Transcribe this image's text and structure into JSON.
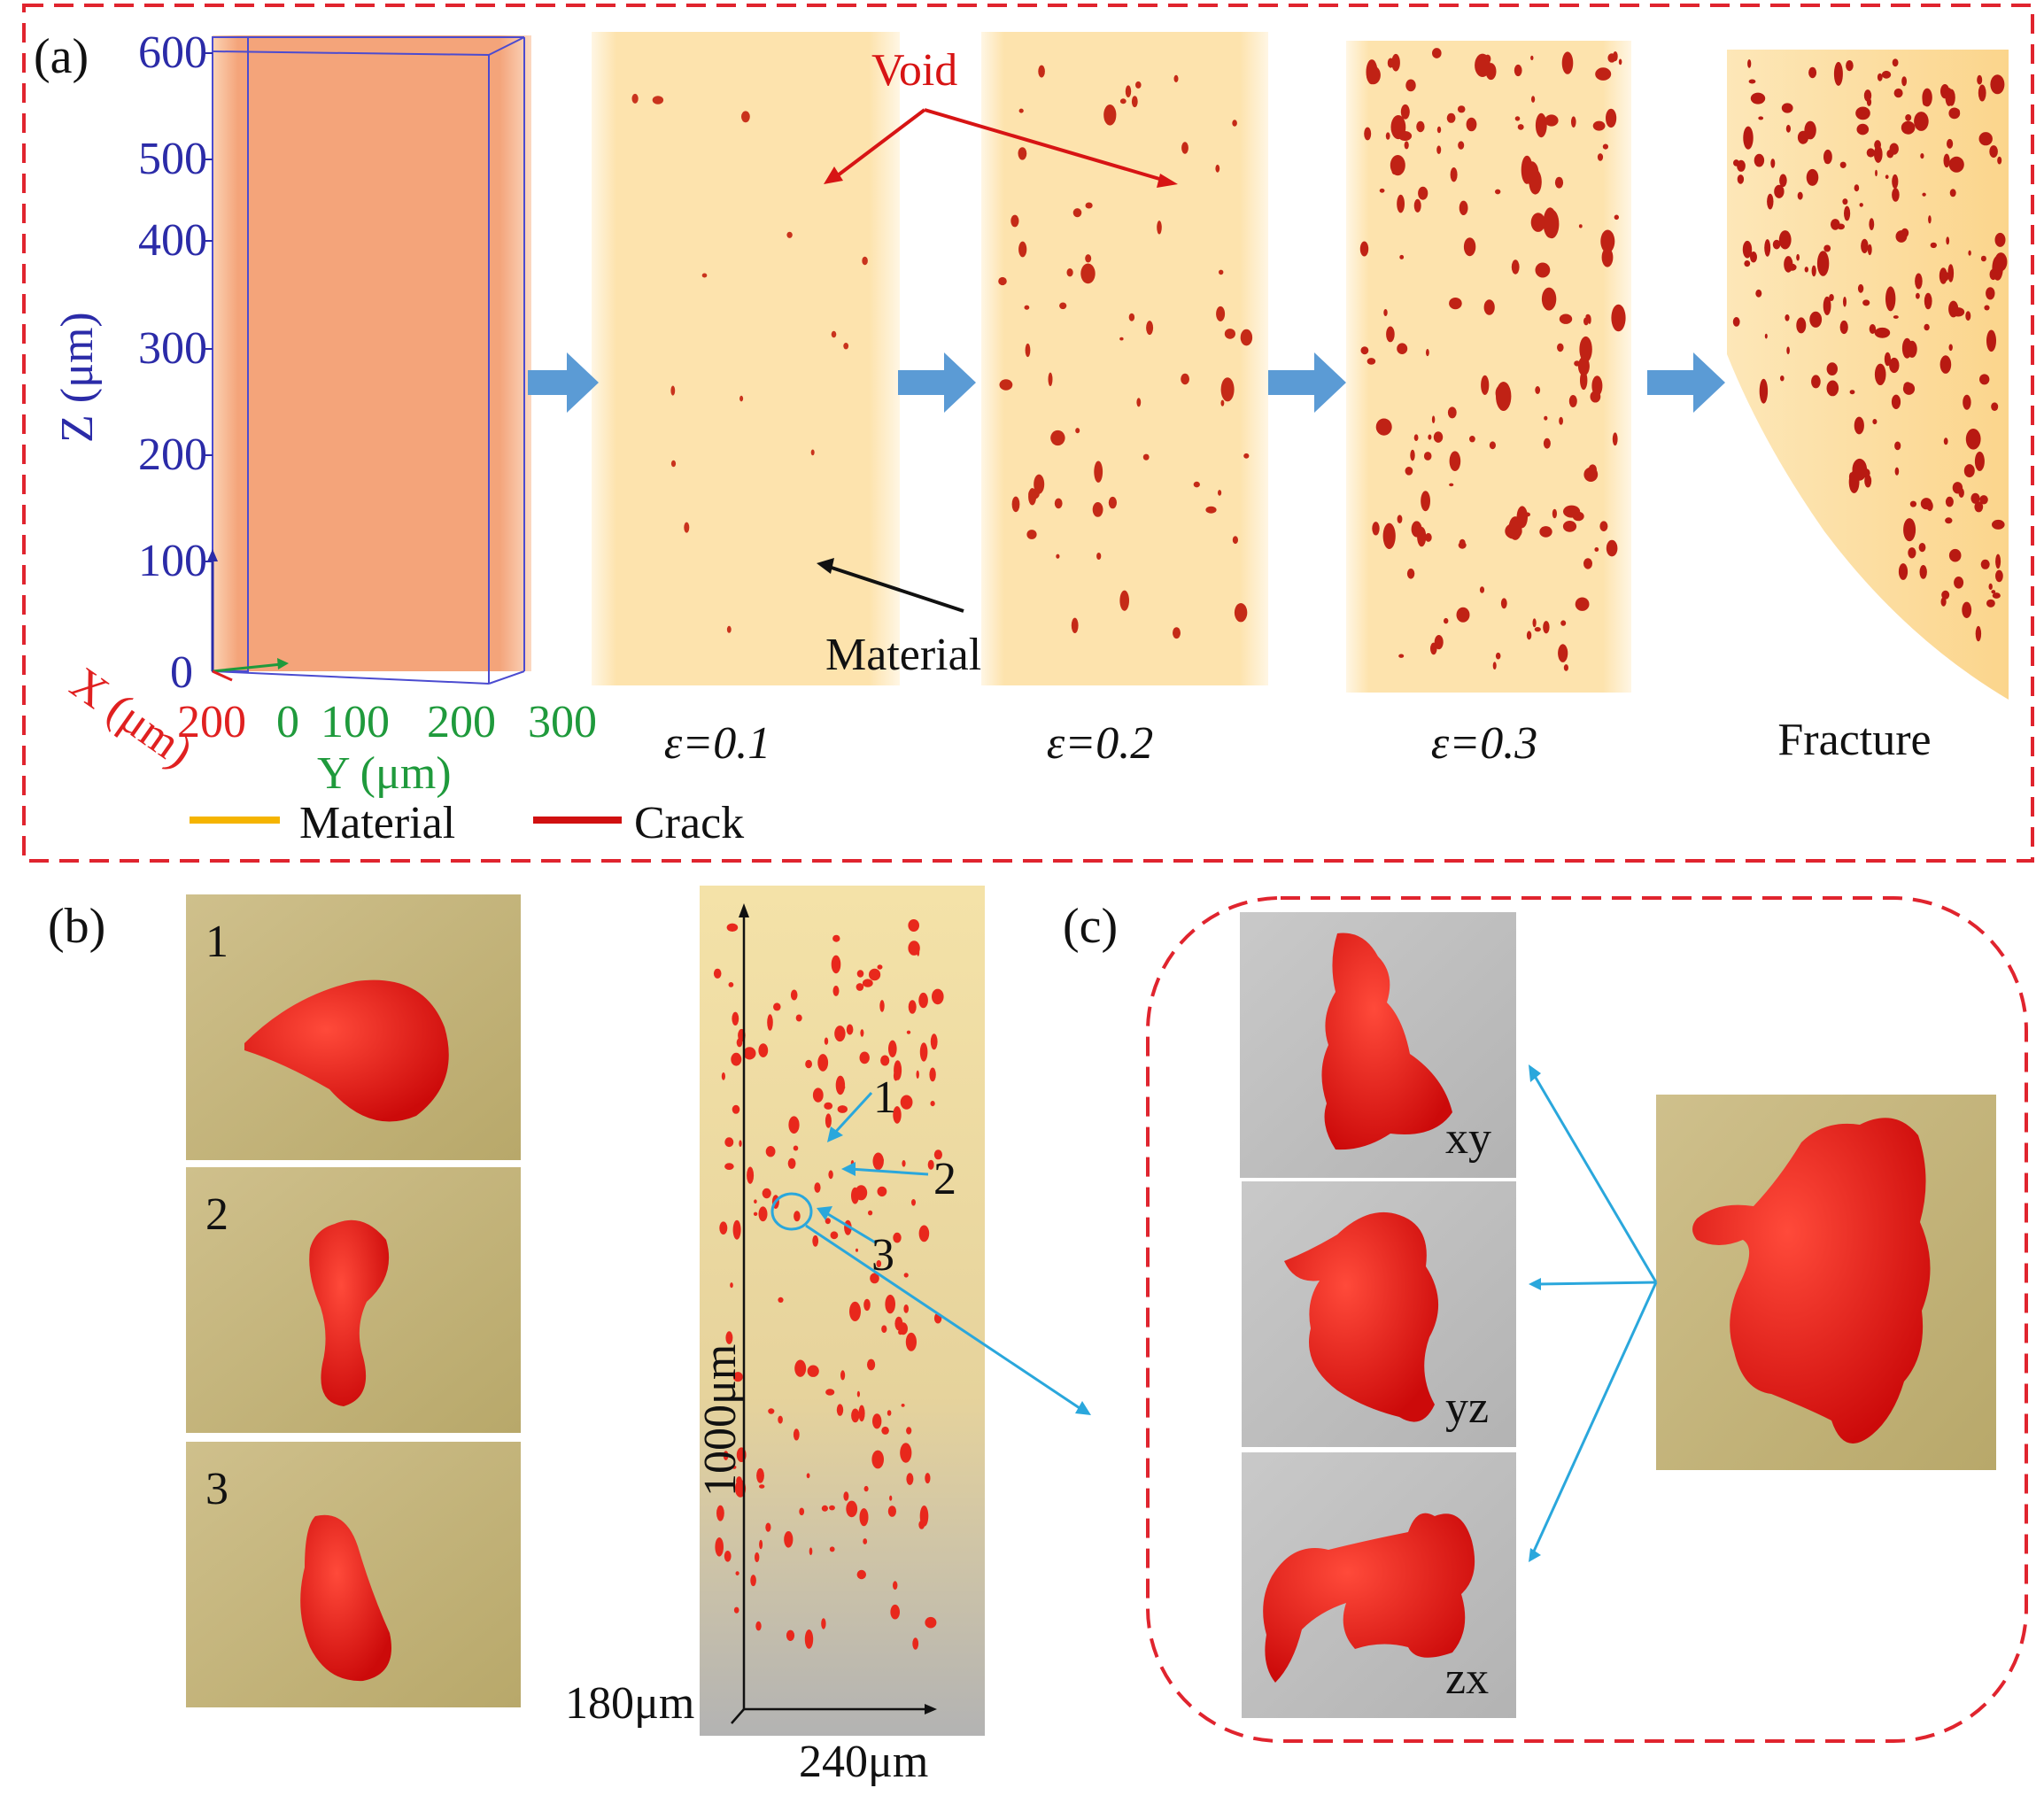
{
  "colors": {
    "frame_red": "#e0242e",
    "axis_blue": "#2b2ba8",
    "x_red": "#e02020",
    "y_green": "#1f9a3c",
    "arrow_blue": "#5b9bd5",
    "material": "#f5b400",
    "crack": "#d01010",
    "void_red": "#d71414",
    "cyan_arrow": "#2aa7dc"
  },
  "panel_a": {
    "label": "(a)",
    "z_axis": {
      "title": "Z (μm)",
      "ticks": [
        "600",
        "500",
        "400",
        "300",
        "200",
        "100",
        "0"
      ]
    },
    "x_axis": {
      "title": "X (μm)",
      "tick": "200"
    },
    "y_axis": {
      "title": "Y (μm)",
      "ticks": [
        "0",
        "100",
        "200",
        "300"
      ]
    },
    "annotations": {
      "void": "Void",
      "material": "Material"
    },
    "stages": [
      "ε=0.1",
      "ε=0.2",
      "ε=0.3",
      "Fracture"
    ],
    "legend": {
      "material": "Material",
      "crack": "Crack"
    }
  },
  "panel_b": {
    "label": "(b)",
    "thumb_labels": [
      "1",
      "2",
      "3"
    ],
    "callouts": [
      "1",
      "2",
      "3"
    ],
    "dims": {
      "height": "1000μm",
      "depth": "180μm",
      "width": "240μm"
    }
  },
  "panel_c": {
    "label": "(c)",
    "views": [
      "xy",
      "yz",
      "zx"
    ]
  }
}
